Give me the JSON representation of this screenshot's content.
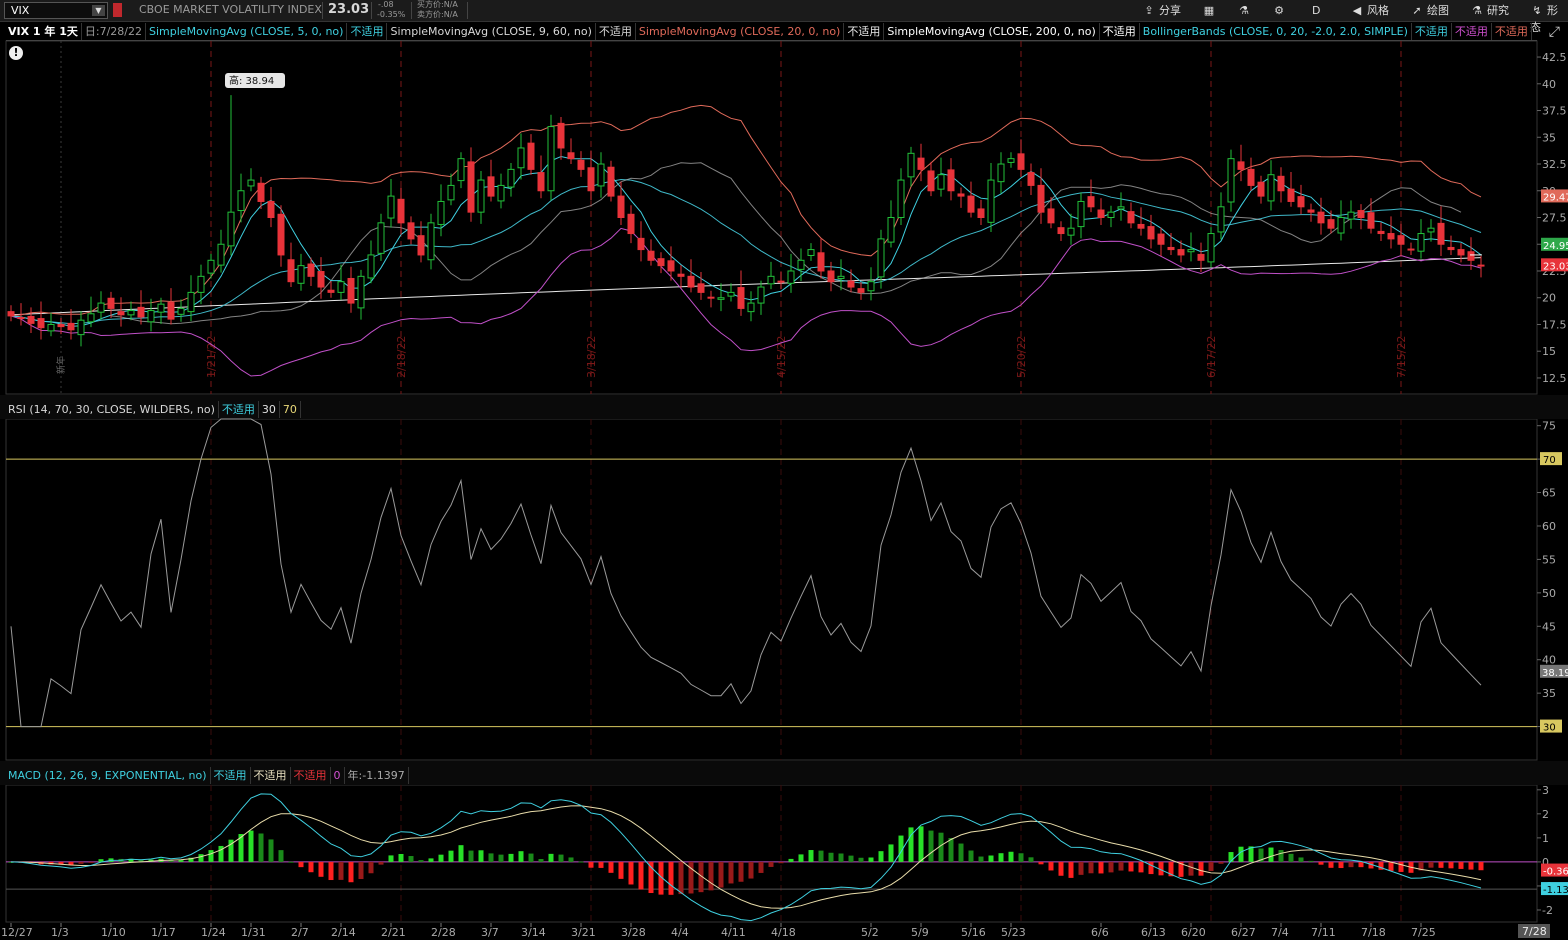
{
  "toolbar": {
    "symbol": "VIX",
    "description": "CBOE MARKET VOLATILITY INDEX",
    "last_price": "23.03",
    "change": "-.08",
    "change_pct": "-0.35%",
    "bid": "买方价:N/A",
    "ask": "卖方价:N/A",
    "share_label": "分享",
    "timeframe_label": "D",
    "style_label": "风格",
    "drawing_label": "绘图",
    "studies_label": "研究",
    "patterns_label": "形态"
  },
  "price_pane": {
    "title": "VIX 1 年 1天",
    "date_label": "日:7/28/22",
    "studies": [
      {
        "label": "SimpleMovingAvg (CLOSE, 5, 0, no)",
        "value": "不适用",
        "color": "#3fd0e0"
      },
      {
        "label": "SimpleMovingAvg (CLOSE, 9, 60, no)",
        "value": "不适用",
        "color": "#d8d8d8"
      },
      {
        "label": "SimpleMovingAvg (CLOSE, 20, 0, no)",
        "value": "不适用",
        "color": "#e06a5a"
      },
      {
        "label": "SimpleMovingAvg (CLOSE, 200, 0, no)",
        "value": "不适用",
        "color": "#ffffff"
      },
      {
        "label": "BollingerBands (CLOSE, 0, 20, -2.0, 2.0, SIMPLE)",
        "value": "不适用",
        "color": "#3fd0e0"
      }
    ],
    "bb_lower_value": "不适用",
    "bb_upper_value": "不适用",
    "high_marker": "高: 38.94",
    "y_ticks": [
      "42.5",
      "40",
      "37.5",
      "35",
      "32.5",
      "30",
      "27.5",
      "25",
      "22.5",
      "20",
      "17.5",
      "15",
      "12.5"
    ],
    "price_labels": [
      {
        "text": "29.47",
        "color": "#e06a5a"
      },
      {
        "text": "24.95",
        "color": "#2ea84a"
      },
      {
        "text": "23.03",
        "color": "#e8333a"
      }
    ],
    "expiration_labels": [
      "1/21/22",
      "2/18/22",
      "3/18/22",
      "4/15/22",
      "5/20/22",
      "6/17/22",
      "7/15/22"
    ],
    "holiday_label": "新年"
  },
  "rsi_pane": {
    "label": "RSI (14, 70, 30, CLOSE, WILDERS, no)",
    "value": "不适用",
    "oversold": "30",
    "overbought": "70",
    "y_ticks": [
      "75",
      "70",
      "65",
      "60",
      "55",
      "50",
      "45",
      "40",
      "35",
      "30"
    ],
    "current": "38.19"
  },
  "macd_pane": {
    "label": "MACD (12, 26, 9, EXPONENTIAL, no)",
    "value_a": "不适用",
    "value_b": "不适用",
    "value_c": "不适用",
    "zero": "0",
    "diff": "年:-1.1397",
    "y_ticks": [
      "3",
      "2",
      "1",
      "0",
      "-1",
      "-2"
    ],
    "labels": [
      {
        "text": "-0.36",
        "color": "#e8333a"
      },
      {
        "text": "-1.13",
        "color": "#3fd0e0"
      }
    ]
  },
  "x_axis": {
    "dates": [
      "12/27",
      "1/3",
      "1/10",
      "1/17",
      "1/24",
      "1/31",
      "2/7",
      "2/14",
      "2/21",
      "2/28",
      "3/7",
      "3/14",
      "3/21",
      "3/28",
      "4/4",
      "4/11",
      "4/18",
      "5/2",
      "5/9",
      "5/16",
      "5/23",
      "6/6",
      "6/13",
      "6/20",
      "6/27",
      "7/4",
      "7/11",
      "7/18",
      "7/25"
    ],
    "cursor_date": "7/28"
  },
  "chart_data": {
    "type": "candlestick",
    "title": "CBOE MARKET VOLATILITY INDEX",
    "symbol": "VIX",
    "interval": "1 day",
    "ylim": [
      11,
      44
    ],
    "closes": [
      18.3,
      18.1,
      17.6,
      17.2,
      17.5,
      17.3,
      17.0,
      17.9,
      18.5,
      19.5,
      19.0,
      18.4,
      18.8,
      18.2,
      18.8,
      19.4,
      18.0,
      19.0,
      20.5,
      22.0,
      23.5,
      25.0,
      28.0,
      30.0,
      31.0,
      29.0,
      27.5,
      24.0,
      21.5,
      23.0,
      22.0,
      21.0,
      20.5,
      21.5,
      19.5,
      22.0,
      24.0,
      27.0,
      29.5,
      27.0,
      25.5,
      24.0,
      27.0,
      29.0,
      30.5,
      33.0,
      28.0,
      31.0,
      29.5,
      30.5,
      32.0,
      34.0,
      32.0,
      30.0,
      36.0,
      34.0,
      33.0,
      32.0,
      30.0,
      32.5,
      29.5,
      27.5,
      26.0,
      24.5,
      23.5,
      23.0,
      22.5,
      22.0,
      21.0,
      20.5,
      20.0,
      20.0,
      20.5,
      19.0,
      19.5,
      21.0,
      22.0,
      21.5,
      22.5,
      23.5,
      24.5,
      22.5,
      21.5,
      22.0,
      21.0,
      20.5,
      21.5,
      25.5,
      27.5,
      31.0,
      33.5,
      32.0,
      30.0,
      31.5,
      30.0,
      29.5,
      28.0,
      27.5,
      31.0,
      32.5,
      33.0,
      32.0,
      30.5,
      28.0,
      27.0,
      26.0,
      26.5,
      29.0,
      28.5,
      27.5,
      28.0,
      28.5,
      27.0,
      26.5,
      25.5,
      25.0,
      24.5,
      24.0,
      24.5,
      23.5,
      26.0,
      28.5,
      33.0,
      32.0,
      30.5,
      29.5,
      31.5,
      30.0,
      29.0,
      28.5,
      28.0,
      27.0,
      26.5,
      27.5,
      28.0,
      27.5,
      26.5,
      26.0,
      25.5,
      25.0,
      24.5,
      26.0,
      26.5,
      25.0,
      24.5,
      24.0,
      23.5,
      23.0
    ]
  }
}
